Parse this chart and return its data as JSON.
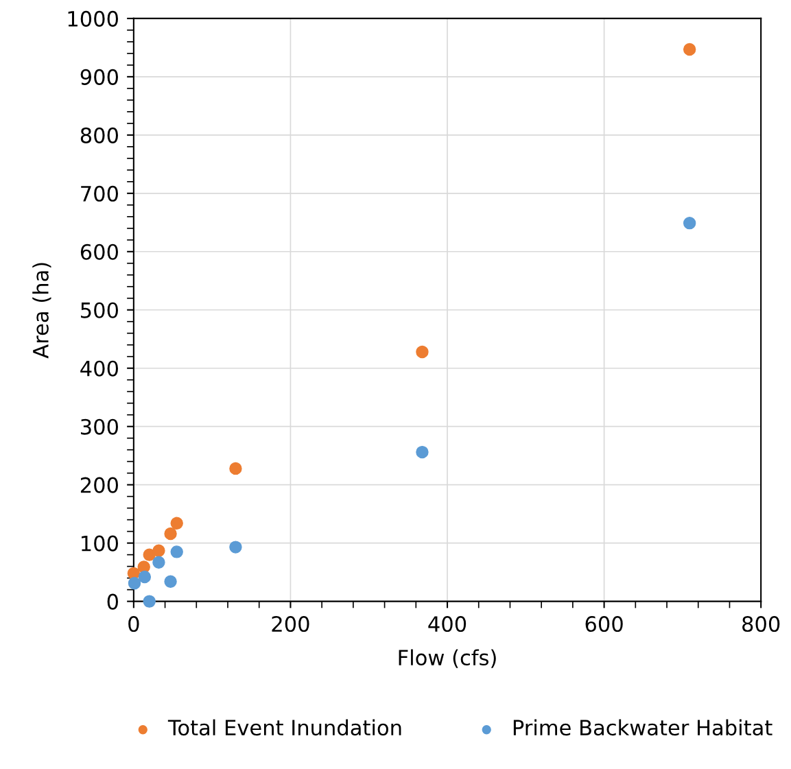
{
  "chart_data": {
    "type": "scatter",
    "xlabel": "Flow (cfs)",
    "ylabel": "Area (ha)",
    "xlim": [
      0,
      800
    ],
    "xticks": [
      0,
      200,
      400,
      600,
      800
    ],
    "ylim": [
      0,
      1000
    ],
    "yticks": [
      0,
      100,
      200,
      300,
      400,
      500,
      600,
      700,
      800,
      900,
      1000
    ],
    "grid": true,
    "legend": "bottom",
    "marker": "circle",
    "series": [
      {
        "name": "Total Event Inundation",
        "color": "#ed7d31",
        "x": [
          0,
          13,
          20,
          32,
          47,
          55,
          130,
          368,
          709
        ],
        "values": [
          48,
          59,
          80,
          87,
          116,
          134,
          228,
          428,
          947
        ]
      },
      {
        "name": "Prime Backwater Habitat",
        "color": "#5b9bd5",
        "x": [
          1,
          14,
          20,
          32,
          47,
          55,
          130,
          368,
          709
        ],
        "values": [
          31,
          42,
          0,
          67,
          34,
          85,
          93,
          256,
          649
        ]
      }
    ]
  }
}
